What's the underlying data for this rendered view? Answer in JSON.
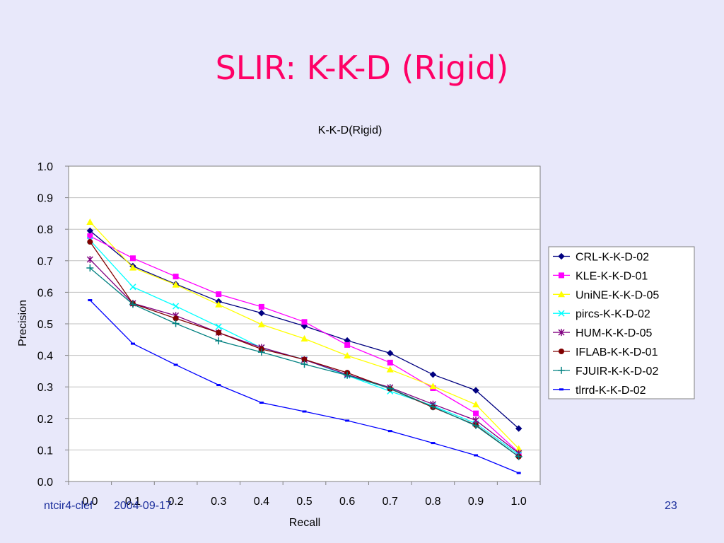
{
  "slide": {
    "title": "SLIR: K-K-D (Rigid)",
    "footer_left": "ntcir4-clef",
    "footer_date": "2004-09-17",
    "page_number": "23"
  },
  "chart_data": {
    "type": "line",
    "title": "K-K-D(Rigid)",
    "xlabel": "Recall",
    "ylabel": "Precision",
    "x": [
      0.0,
      0.1,
      0.2,
      0.3,
      0.4,
      0.5,
      0.6,
      0.7,
      0.8,
      0.9,
      1.0
    ],
    "xtick_labels": [
      "0.0",
      "0.1",
      "0.2",
      "0.3",
      "0.4",
      "0.5",
      "0.6",
      "0.7",
      "0.8",
      "0.9",
      "1.0"
    ],
    "ylim": [
      0,
      1
    ],
    "yticks": [
      0.0,
      0.1,
      0.2,
      0.3,
      0.4,
      0.5,
      0.6,
      0.7,
      0.8,
      0.9,
      1.0
    ],
    "ytick_labels": [
      "0.0",
      "0.1",
      "0.2",
      "0.3",
      "0.4",
      "0.5",
      "0.6",
      "0.7",
      "0.8",
      "0.9",
      "1.0"
    ],
    "grid": "horizontal",
    "legend_position": "right",
    "series": [
      {
        "name": "CRL-K-K-D-02",
        "color": "#000080",
        "marker": "diamond",
        "values": [
          0.795,
          0.683,
          0.626,
          0.571,
          0.534,
          0.493,
          0.447,
          0.407,
          0.339,
          0.289,
          0.168
        ]
      },
      {
        "name": "KLE-K-K-D-01",
        "color": "#FF00FF",
        "marker": "square",
        "values": [
          0.778,
          0.708,
          0.65,
          0.594,
          0.554,
          0.506,
          0.433,
          0.377,
          0.296,
          0.216,
          0.092
        ]
      },
      {
        "name": "UniNE-K-K-D-05",
        "color": "#FFFF00",
        "marker": "triangle",
        "values": [
          0.823,
          0.678,
          0.624,
          0.561,
          0.498,
          0.453,
          0.399,
          0.355,
          0.302,
          0.244,
          0.104
        ]
      },
      {
        "name": "pircs-K-K-D-02",
        "color": "#00FFFF",
        "marker": "x",
        "values": [
          0.765,
          0.617,
          0.556,
          0.491,
          0.424,
          0.387,
          0.336,
          0.286,
          0.24,
          0.184,
          0.085
        ]
      },
      {
        "name": "HUM-K-K-D-05",
        "color": "#800080",
        "marker": "star",
        "values": [
          0.704,
          0.565,
          0.526,
          0.472,
          0.425,
          0.386,
          0.339,
          0.298,
          0.245,
          0.194,
          0.09
        ]
      },
      {
        "name": "IFLAB-K-K-D-01",
        "color": "#800000",
        "marker": "circle",
        "values": [
          0.76,
          0.564,
          0.517,
          0.472,
          0.42,
          0.387,
          0.345,
          0.294,
          0.235,
          0.179,
          0.079
        ]
      },
      {
        "name": "FJUIR-K-K-D-02",
        "color": "#008080",
        "marker": "plus",
        "values": [
          0.677,
          0.562,
          0.501,
          0.446,
          0.41,
          0.372,
          0.337,
          0.295,
          0.237,
          0.177,
          0.079
        ]
      },
      {
        "name": "tlrrd-K-K-D-02",
        "color": "#0000FF",
        "marker": "dash",
        "values": [
          0.575,
          0.437,
          0.37,
          0.306,
          0.25,
          0.222,
          0.193,
          0.16,
          0.122,
          0.083,
          0.027
        ]
      }
    ]
  }
}
